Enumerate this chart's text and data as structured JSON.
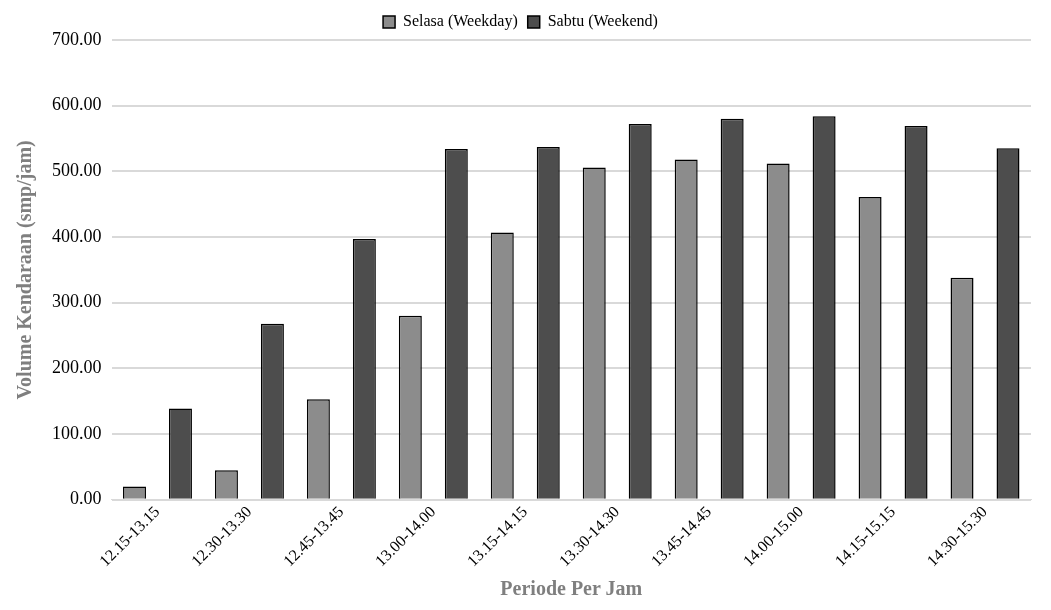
{
  "chart_data": {
    "type": "bar",
    "xlabel": "Periode Per Jam",
    "ylabel": "Volume Kendaraan (smp/jam)",
    "categories": [
      "12.15-13.15",
      "12.30-13.30",
      "12.45-13.45",
      "13.00-14.00",
      "13.15-14.15",
      "13.30-14.30",
      "13.45-14.45",
      "14.00-15.00",
      "14.15-15.15",
      "14.30-15.30"
    ],
    "series": [
      {
        "name": "Selasa (Weekday)",
        "color": "#8c8c8c",
        "values": [
          20,
          45,
          153,
          280,
          407,
          506,
          518,
          512,
          461,
          338
        ]
      },
      {
        "name": "Sabtu (Weekend)",
        "color": "#4d4d4d",
        "values": [
          139,
          268,
          397,
          534,
          537,
          572,
          580,
          584,
          569,
          535
        ]
      }
    ],
    "ylim": [
      0,
      700
    ],
    "yticks": [
      {
        "value": 0,
        "label": "0.00"
      },
      {
        "value": 100,
        "label": "100.00"
      },
      {
        "value": 200,
        "label": "200.00"
      },
      {
        "value": 300,
        "label": "300.00"
      },
      {
        "value": 400,
        "label": "400.00"
      },
      {
        "value": 500,
        "label": "500.00"
      },
      {
        "value": 600,
        "label": "600.00"
      },
      {
        "value": 700,
        "label": "700.00"
      }
    ],
    "grid": "y",
    "legend": "top"
  }
}
